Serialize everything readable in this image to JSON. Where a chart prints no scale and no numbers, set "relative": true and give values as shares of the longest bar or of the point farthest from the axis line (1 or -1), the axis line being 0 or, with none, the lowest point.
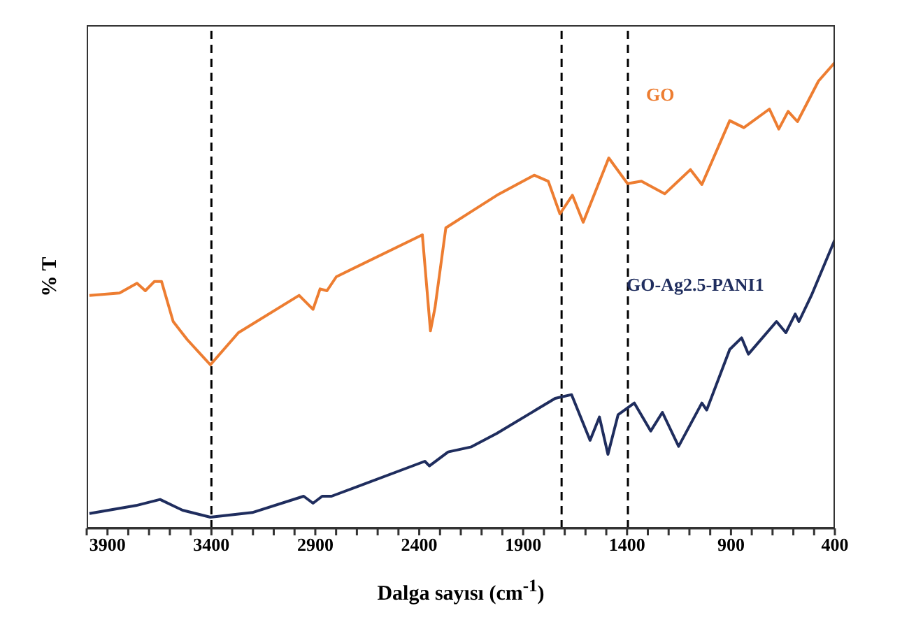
{
  "chart_data": {
    "type": "line",
    "xlabel": "Dalga sayısı (cm$^{-1}$)",
    "ylabel": "% T",
    "relative": true,
    "xlim": [
      4000,
      400
    ],
    "xticks": [
      {
        "value": 4000,
        "label": null
      },
      3900,
      {
        "value": 3800,
        "label": null
      },
      {
        "value": 3700,
        "label": null
      },
      {
        "value": 3600,
        "label": null
      },
      {
        "value": 3500,
        "label": null
      },
      3400,
      {
        "value": 3300,
        "label": null
      },
      {
        "value": 3200,
        "label": null
      },
      {
        "value": 3100,
        "label": null
      },
      {
        "value": 3000,
        "label": null
      },
      2900,
      {
        "value": 2800,
        "label": null
      },
      {
        "value": 2700,
        "label": null
      },
      {
        "value": 2600,
        "label": null
      },
      {
        "value": 2500,
        "label": null
      },
      2400,
      {
        "value": 2300,
        "label": null
      },
      {
        "value": 2200,
        "label": null
      },
      {
        "value": 2100,
        "label": null
      },
      {
        "value": 2000,
        "label": null
      },
      1900,
      {
        "value": 1800,
        "label": null
      },
      {
        "value": 1700,
        "label": null
      },
      {
        "value": 1600,
        "label": null
      },
      {
        "value": 1500,
        "label": null
      },
      1400,
      {
        "value": 1300,
        "label": null
      },
      {
        "value": 1200,
        "label": null
      },
      {
        "value": 1100,
        "label": null
      },
      {
        "value": 1000,
        "label": null
      },
      900,
      {
        "value": 800,
        "label": null
      },
      {
        "value": 700,
        "label": null
      },
      {
        "value": 600,
        "label": null
      },
      {
        "value": 500,
        "label": null
      },
      400
    ],
    "line_style": "solid",
    "marker": "none",
    "series": [
      {
        "name": "GO",
        "color": "#ed7d31",
        "x": [
          3987,
          3842,
          3758,
          3718,
          3674,
          3640,
          3584,
          3516,
          3405,
          3270,
          2978,
          2911,
          2877,
          2844,
          2799,
          2385,
          2346,
          2324,
          2272,
          2149,
          2026,
          1847,
          1779,
          1723,
          1663,
          1611,
          1488,
          1398,
          1331,
          1219,
          1095,
          1040,
          906,
          838,
          715,
          670,
          625,
          580,
          479,
          400
        ],
        "values": [
          0.5,
          0.505,
          0.526,
          0.51,
          0.53,
          0.53,
          0.444,
          0.405,
          0.351,
          0.42,
          0.5,
          0.47,
          0.514,
          0.51,
          0.54,
          0.63,
          0.424,
          0.474,
          0.645,
          0.68,
          0.715,
          0.758,
          0.745,
          0.675,
          0.715,
          0.657,
          0.795,
          0.74,
          0.745,
          0.718,
          0.77,
          0.738,
          0.875,
          0.86,
          0.9,
          0.857,
          0.895,
          0.873,
          0.96,
          1
        ]
      },
      {
        "name": "GO-Ag2.5-PANI1",
        "color": "#1f2d5e",
        "x": [
          3987,
          3763,
          3647,
          3539,
          3405,
          3203,
          2956,
          2911,
          2867,
          2822,
          2373,
          2351,
          2261,
          2149,
          2026,
          1746,
          1667,
          1578,
          1533,
          1492,
          1443,
          1365,
          1286,
          1230,
          1152,
          1040,
          1017,
          906,
          849,
          816,
          681,
          636,
          591,
          573,
          513,
          400
        ],
        "values": [
          0.032,
          0.049,
          0.062,
          0.039,
          0.024,
          0.034,
          0.069,
          0.054,
          0.069,
          0.069,
          0.144,
          0.134,
          0.164,
          0.175,
          0.204,
          0.279,
          0.287,
          0.189,
          0.239,
          0.159,
          0.244,
          0.269,
          0.209,
          0.249,
          0.176,
          0.269,
          0.254,
          0.384,
          0.409,
          0.374,
          0.444,
          0.42,
          0.46,
          0.444,
          0.5,
          0.62
        ]
      }
    ],
    "ref_lines": [
      {
        "axis": "x",
        "value": 3400,
        "color": "#000000",
        "line_style": "dashed"
      },
      {
        "axis": "x",
        "value": 1715,
        "color": "#000000",
        "line_style": "dashed"
      },
      {
        "axis": "x",
        "value": 1396,
        "color": "#000000",
        "line_style": "dashed"
      }
    ]
  }
}
